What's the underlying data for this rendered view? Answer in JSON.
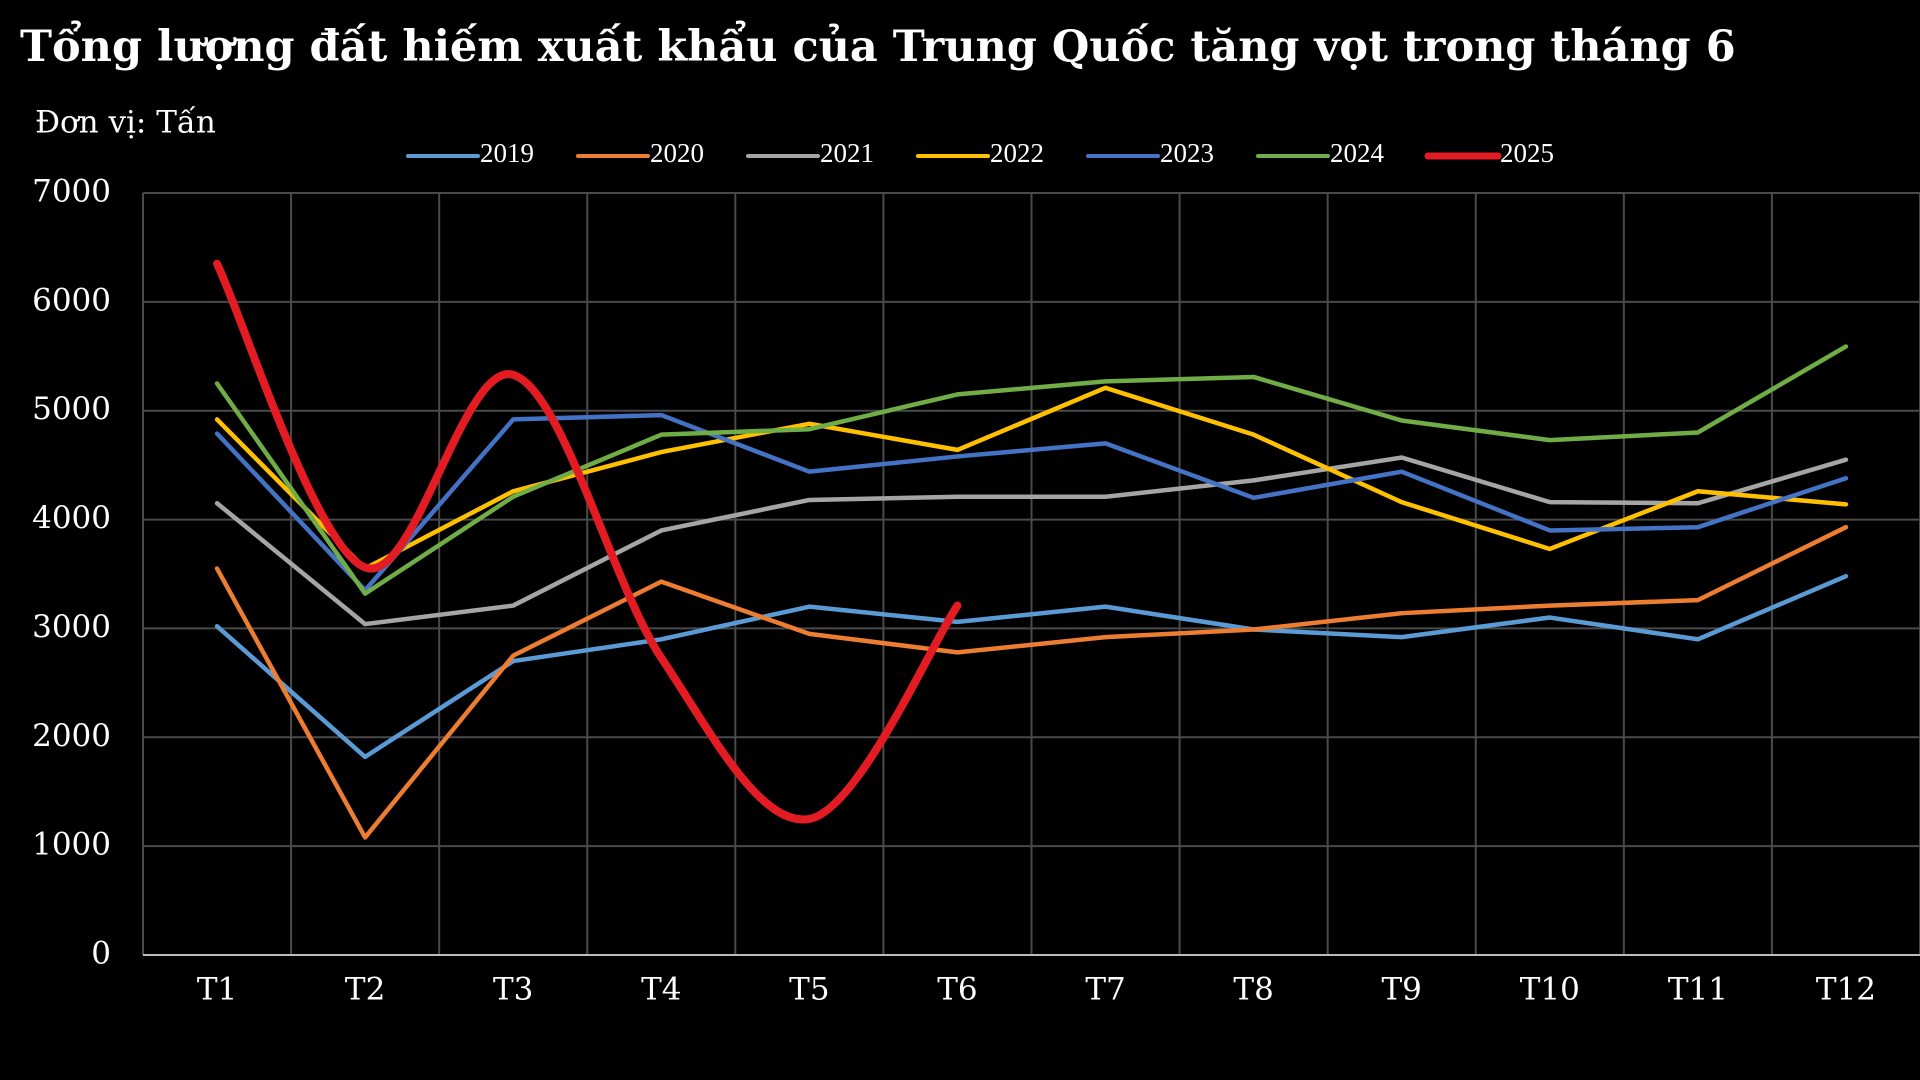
{
  "chart_data": {
    "type": "line",
    "title": "Tổng lượng đất hiếm xuất khẩu của Trung Quốc tăng vọt trong tháng 6",
    "subtitle": "Đơn vị: Tấn",
    "categories": [
      "T1",
      "T2",
      "T3",
      "T4",
      "T5",
      "T6",
      "T7",
      "T8",
      "T9",
      "T10",
      "T11",
      "T12"
    ],
    "series": [
      {
        "name": "2019",
        "color": "#5b9bd5",
        "values": [
          3020,
          1820,
          2700,
          2900,
          3200,
          3060,
          3200,
          2990,
          2920,
          3100,
          2900,
          3480
        ]
      },
      {
        "name": "2020",
        "color": "#ed7d31",
        "values": [
          3550,
          1080,
          2750,
          3430,
          2950,
          2780,
          2920,
          2990,
          3140,
          3210,
          3260,
          3930
        ]
      },
      {
        "name": "2021",
        "color": "#a5a5a5",
        "values": [
          4150,
          3040,
          3210,
          3900,
          4180,
          4210,
          4210,
          4360,
          4570,
          4160,
          4150,
          4550
        ]
      },
      {
        "name": "2022",
        "color": "#ffc000",
        "values": [
          4920,
          3550,
          4260,
          4620,
          4880,
          4640,
          5210,
          4780,
          4160,
          3730,
          4260,
          4140
        ]
      },
      {
        "name": "2023",
        "color": "#4472c4",
        "values": [
          4790,
          3350,
          4920,
          4960,
          4440,
          4580,
          4700,
          4200,
          4440,
          3900,
          3930,
          4380
        ]
      },
      {
        "name": "2024",
        "color": "#70ad47",
        "values": [
          5250,
          3320,
          4210,
          4780,
          4830,
          5150,
          5270,
          5310,
          4910,
          4730,
          4800,
          5590
        ]
      },
      {
        "name": "2025",
        "color": "#e31b23",
        "values": [
          6350,
          3560,
          5330,
          2730,
          1250,
          3210,
          null,
          null,
          null,
          null,
          null,
          null
        ]
      }
    ],
    "ylim": [
      0,
      7000
    ],
    "yticks": [
      0,
      1000,
      2000,
      3000,
      4000,
      5000,
      6000,
      7000
    ],
    "grid": true
  }
}
